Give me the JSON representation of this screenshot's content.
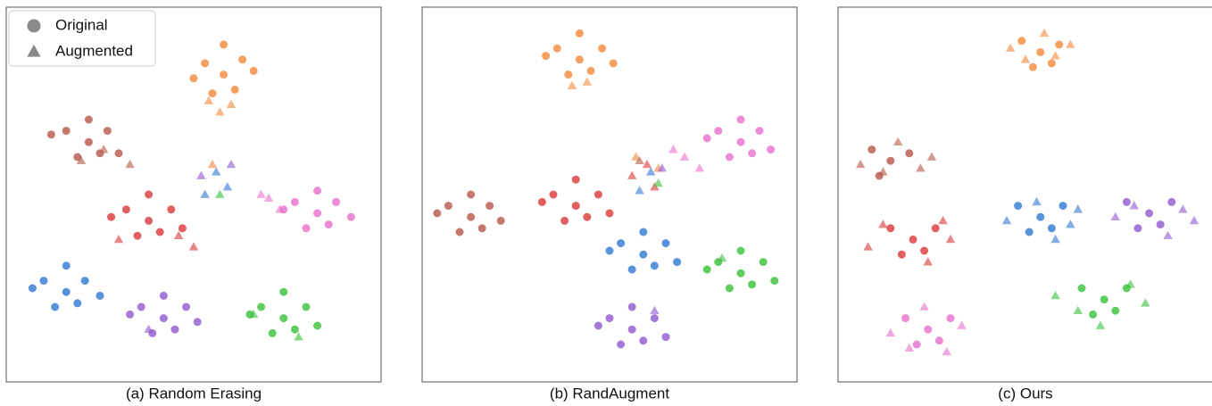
{
  "chart_data": [
    {
      "type": "scatter",
      "title": "(a) Random Erasing",
      "xlim": [
        0,
        100
      ],
      "ylim": [
        0,
        100
      ],
      "legend": {
        "corner": "upper left",
        "color": "#8a8a8a",
        "entries": [
          {
            "label": "Original",
            "marker": "circle"
          },
          {
            "label": "Augmented",
            "marker": "triangle"
          }
        ]
      },
      "series": [
        {
          "marker": "circle",
          "color": "#f4883a",
          "x": [
            58,
            53,
            63,
            55,
            61,
            50,
            66,
            58
          ],
          "y": [
            82,
            85,
            86,
            77,
            78,
            81,
            83,
            90
          ]
        },
        {
          "marker": "triangle",
          "color": "#f4883a",
          "x": [
            57,
            60,
            54,
            55
          ],
          "y": [
            72,
            74,
            75,
            58
          ]
        },
        {
          "marker": "circle",
          "color": "#b5564a",
          "x": [
            22,
            16,
            27,
            19,
            25,
            12,
            30,
            22
          ],
          "y": [
            64,
            67,
            67,
            60,
            61,
            66,
            61,
            70
          ]
        },
        {
          "marker": "triangle",
          "color": "#b5564a",
          "x": [
            20,
            26,
            33
          ],
          "y": [
            59,
            62,
            58
          ]
        },
        {
          "marker": "circle",
          "color": "#d9373a",
          "x": [
            38,
            32,
            44,
            35,
            41,
            28,
            47,
            38
          ],
          "y": [
            43,
            46,
            46,
            39,
            40,
            44,
            41,
            50
          ]
        },
        {
          "marker": "triangle",
          "color": "#d9373a",
          "x": [
            30,
            46,
            50
          ],
          "y": [
            38,
            39,
            36
          ]
        },
        {
          "marker": "circle",
          "color": "#e86fcc",
          "x": [
            83,
            77,
            88,
            80,
            86,
            74,
            92,
            83
          ],
          "y": [
            45,
            48,
            48,
            41,
            42,
            46,
            44,
            51
          ]
        },
        {
          "marker": "triangle",
          "color": "#e86fcc",
          "x": [
            70,
            73,
            68
          ],
          "y": [
            49,
            46,
            50
          ]
        },
        {
          "marker": "circle",
          "color": "#2f78d2",
          "x": [
            16,
            10,
            21,
            13,
            19,
            7,
            25,
            16
          ],
          "y": [
            24,
            27,
            27,
            20,
            21,
            25,
            23,
            31
          ]
        },
        {
          "marker": "triangle",
          "color": "#2f78d2",
          "x": [
            56,
            59,
            53
          ],
          "y": [
            56,
            52,
            50
          ]
        },
        {
          "marker": "circle",
          "color": "#9059d0",
          "x": [
            42,
            36,
            48,
            39,
            45,
            33,
            51,
            42
          ],
          "y": [
            17,
            20,
            20,
            13,
            14,
            18,
            16,
            23
          ]
        },
        {
          "marker": "triangle",
          "color": "#9059d0",
          "x": [
            52,
            60,
            38
          ],
          "y": [
            55,
            58,
            14
          ]
        },
        {
          "marker": "circle",
          "color": "#38c03a",
          "x": [
            74,
            68,
            80,
            71,
            77,
            65,
            83,
            74
          ],
          "y": [
            17,
            20,
            20,
            13,
            14,
            18,
            15,
            24
          ]
        },
        {
          "marker": "triangle",
          "color": "#38c03a",
          "x": [
            57,
            66,
            78
          ],
          "y": [
            50,
            18,
            12
          ]
        }
      ]
    },
    {
      "type": "scatter",
      "title": "(b) RandAugment",
      "xlim": [
        0,
        100
      ],
      "ylim": [
        0,
        100
      ],
      "series": [
        {
          "marker": "circle",
          "color": "#f4883a",
          "x": [
            42,
            36,
            48,
            39,
            45,
            33,
            51,
            42
          ],
          "y": [
            86,
            89,
            89,
            82,
            83,
            87,
            85,
            93
          ]
        },
        {
          "marker": "triangle",
          "color": "#f4883a",
          "x": [
            44,
            40,
            57,
            63
          ],
          "y": [
            80,
            79,
            60,
            57
          ]
        },
        {
          "marker": "circle",
          "color": "#e86fcc",
          "x": [
            85,
            79,
            90,
            82,
            88,
            76,
            93,
            85
          ],
          "y": [
            64,
            67,
            67,
            60,
            61,
            65,
            62,
            70
          ]
        },
        {
          "marker": "triangle",
          "color": "#e86fcc",
          "x": [
            70,
            74,
            67
          ],
          "y": [
            60,
            57,
            62
          ]
        },
        {
          "marker": "circle",
          "color": "#b5564a",
          "x": [
            13,
            7,
            18,
            10,
            16,
            4,
            21,
            13
          ],
          "y": [
            44,
            47,
            47,
            40,
            41,
            45,
            43,
            50
          ]
        },
        {
          "marker": "triangle",
          "color": "#b5564a",
          "x": [
            58
          ],
          "y": [
            59
          ]
        },
        {
          "marker": "circle",
          "color": "#d9373a",
          "x": [
            41,
            35,
            47,
            38,
            44,
            32,
            50,
            41
          ],
          "y": [
            47,
            50,
            50,
            43,
            44,
            48,
            45,
            54
          ]
        },
        {
          "marker": "triangle",
          "color": "#d9373a",
          "x": [
            56,
            62,
            60
          ],
          "y": [
            55,
            52,
            58
          ]
        },
        {
          "marker": "circle",
          "color": "#2f78d2",
          "x": [
            59,
            53,
            65,
            56,
            62,
            50,
            68,
            59
          ],
          "y": [
            34,
            37,
            37,
            30,
            31,
            35,
            32,
            40
          ]
        },
        {
          "marker": "triangle",
          "color": "#2f78d2",
          "x": [
            58,
            61
          ],
          "y": [
            51,
            56
          ]
        },
        {
          "marker": "circle",
          "color": "#38c03a",
          "x": [
            85,
            79,
            91,
            82,
            88,
            76,
            94,
            85
          ],
          "y": [
            29,
            32,
            32,
            25,
            26,
            30,
            27,
            35
          ]
        },
        {
          "marker": "triangle",
          "color": "#38c03a",
          "x": [
            80,
            63
          ],
          "y": [
            33,
            53
          ]
        },
        {
          "marker": "circle",
          "color": "#9059d0",
          "x": [
            56,
            50,
            62,
            53,
            59,
            47,
            65,
            56
          ],
          "y": [
            14,
            17,
            17,
            10,
            11,
            15,
            12,
            20
          ]
        },
        {
          "marker": "triangle",
          "color": "#9059d0",
          "x": [
            64,
            62
          ],
          "y": [
            57,
            19
          ]
        }
      ]
    },
    {
      "type": "scatter",
      "title": "(c) Ours",
      "xlim": [
        0,
        100
      ],
      "ylim": [
        0,
        100
      ],
      "series": [
        {
          "marker": "circle",
          "color": "#f4883a",
          "x": [
            54,
            49,
            59,
            52,
            57
          ],
          "y": [
            88,
            91,
            90,
            84,
            85
          ]
        },
        {
          "marker": "triangle",
          "color": "#f4883a",
          "x": [
            50,
            58,
            46,
            62,
            55
          ],
          "y": [
            86,
            87,
            89,
            90,
            93
          ]
        },
        {
          "marker": "circle",
          "color": "#b5564a",
          "x": [
            14,
            9,
            19,
            11
          ],
          "y": [
            59,
            62,
            61,
            55
          ]
        },
        {
          "marker": "triangle",
          "color": "#b5564a",
          "x": [
            6,
            16,
            22,
            12,
            25
          ],
          "y": [
            58,
            64,
            57,
            56,
            60
          ]
        },
        {
          "marker": "circle",
          "color": "#2f78d2",
          "x": [
            54,
            48,
            60,
            51,
            57
          ],
          "y": [
            44,
            47,
            47,
            40,
            41
          ]
        },
        {
          "marker": "triangle",
          "color": "#2f78d2",
          "x": [
            45,
            62,
            53,
            58,
            64
          ],
          "y": [
            43,
            42,
            48,
            38,
            46
          ]
        },
        {
          "marker": "circle",
          "color": "#9059d0",
          "x": [
            83,
            77,
            89,
            80,
            86
          ],
          "y": [
            45,
            48,
            48,
            41,
            42
          ]
        },
        {
          "marker": "triangle",
          "color": "#9059d0",
          "x": [
            74,
            92,
            79,
            88,
            95
          ],
          "y": [
            44,
            46,
            47,
            39,
            43
          ]
        },
        {
          "marker": "circle",
          "color": "#d9373a",
          "x": [
            20,
            14,
            26,
            17,
            23
          ],
          "y": [
            38,
            41,
            41,
            34,
            35
          ]
        },
        {
          "marker": "triangle",
          "color": "#d9373a",
          "x": [
            8,
            30,
            12,
            24,
            28
          ],
          "y": [
            36,
            38,
            42,
            32,
            43
          ]
        },
        {
          "marker": "circle",
          "color": "#38c03a",
          "x": [
            71,
            65,
            77,
            68,
            74
          ],
          "y": [
            22,
            25,
            25,
            18,
            19
          ]
        },
        {
          "marker": "triangle",
          "color": "#38c03a",
          "x": [
            58,
            82,
            64,
            78,
            70
          ],
          "y": [
            23,
            21,
            19,
            26,
            15
          ]
        },
        {
          "marker": "circle",
          "color": "#e86fcc",
          "x": [
            24,
            18,
            30,
            21,
            27
          ],
          "y": [
            14,
            17,
            17,
            10,
            11
          ]
        },
        {
          "marker": "triangle",
          "color": "#e86fcc",
          "x": [
            14,
            33,
            19,
            29,
            23
          ],
          "y": [
            13,
            15,
            9,
            8,
            20
          ]
        }
      ]
    }
  ]
}
